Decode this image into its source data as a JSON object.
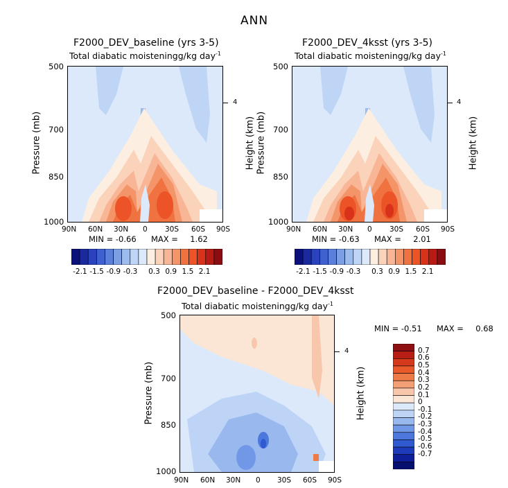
{
  "figure_title": "ANN",
  "colors": {
    "pos": [
      "#fdeee2",
      "#fbd3bb",
      "#f8b696",
      "#f39568",
      "#ef7240",
      "#ec5326",
      "#d9321a",
      "#b81a15",
      "#8a0d12"
    ],
    "neg": [
      "#dbe9fb",
      "#bfd5f5",
      "#9dbbed",
      "#7c9fe4",
      "#5b80db",
      "#3f61cf",
      "#2a43bc",
      "#1a2a9d",
      "#0b117c"
    ],
    "diff_pos": [
      "#fbe6d6",
      "#f8c6aa",
      "#f39e75",
      "#ee7a48",
      "#e9592b",
      "#d63a1c",
      "#b71f15",
      "#8d0f12"
    ],
    "diff_neg": [
      "#dbe9fb",
      "#bed4f6",
      "#98b8ee",
      "#7198e6",
      "#4c78dd",
      "#305ad0",
      "#1d3bbb",
      "#0f1f99",
      "#07106f"
    ]
  },
  "chart_data": [
    {
      "type": "contour",
      "title": "F2000_DEV_baseline (yrs 3-5)",
      "subtitle": "Total diabatic moistening",
      "units_text": "g/kg day",
      "units_sup": "-1",
      "ylabel": "Pressure (mb)",
      "ylabel_right": "Height (km)",
      "y_ticks": [
        "500",
        "700",
        "850",
        "1000"
      ],
      "y_tick_right": "4",
      "x_ticks": [
        "90N",
        "60N",
        "30N",
        "0",
        "30S",
        "60S",
        "90S"
      ],
      "min_label": "MIN =",
      "min_value": "-0.66",
      "max_label": "MAX =",
      "max_value": "1.62",
      "colorbar_levels": [
        "-2.1",
        "-1.5",
        "-0.9",
        "-0.3",
        "0.3",
        "0.9",
        "1.5",
        "2.1"
      ]
    },
    {
      "type": "contour",
      "title": "F2000_DEV_4ksst (yrs 3-5)",
      "subtitle": "Total diabatic moistening",
      "units_text": "g/kg day",
      "units_sup": "-1",
      "ylabel": "Pressure (mb)",
      "ylabel_right": "Height (km)",
      "y_ticks": [
        "500",
        "700",
        "850",
        "1000"
      ],
      "y_tick_right": "4",
      "x_ticks": [
        "90N",
        "60N",
        "30N",
        "0",
        "30S",
        "60S",
        "90S"
      ],
      "min_label": "MIN =",
      "min_value": "-0.63",
      "max_label": "MAX =",
      "max_value": "2.01",
      "colorbar_levels": [
        "-2.1",
        "-1.5",
        "-0.9",
        "-0.3",
        "0.3",
        "0.9",
        "1.5",
        "2.1"
      ]
    },
    {
      "type": "contour",
      "title": "F2000_DEV_baseline - F2000_DEV_4ksst",
      "subtitle": "Total diabatic moistening",
      "units_text": "g/kg day",
      "units_sup": "-1",
      "ylabel": "Pressure (mb)",
      "ylabel_right": "Height (km)",
      "y_ticks": [
        "500",
        "700",
        "850",
        "1000"
      ],
      "y_tick_right": "4",
      "x_ticks": [
        "90N",
        "60N",
        "30N",
        "0",
        "30S",
        "60S",
        "90S"
      ],
      "min_label": "MIN =",
      "min_value": "-0.51",
      "max_label": "MAX =",
      "max_value": "0.68",
      "colorbar_levels": [
        "0.7",
        "0.6",
        "0.5",
        "0.4",
        "0.3",
        "0.2",
        "0.1",
        "0",
        "-0.1",
        "-0.2",
        "-0.3",
        "-0.4",
        "-0.5",
        "-0.6",
        "-0.7"
      ]
    }
  ]
}
